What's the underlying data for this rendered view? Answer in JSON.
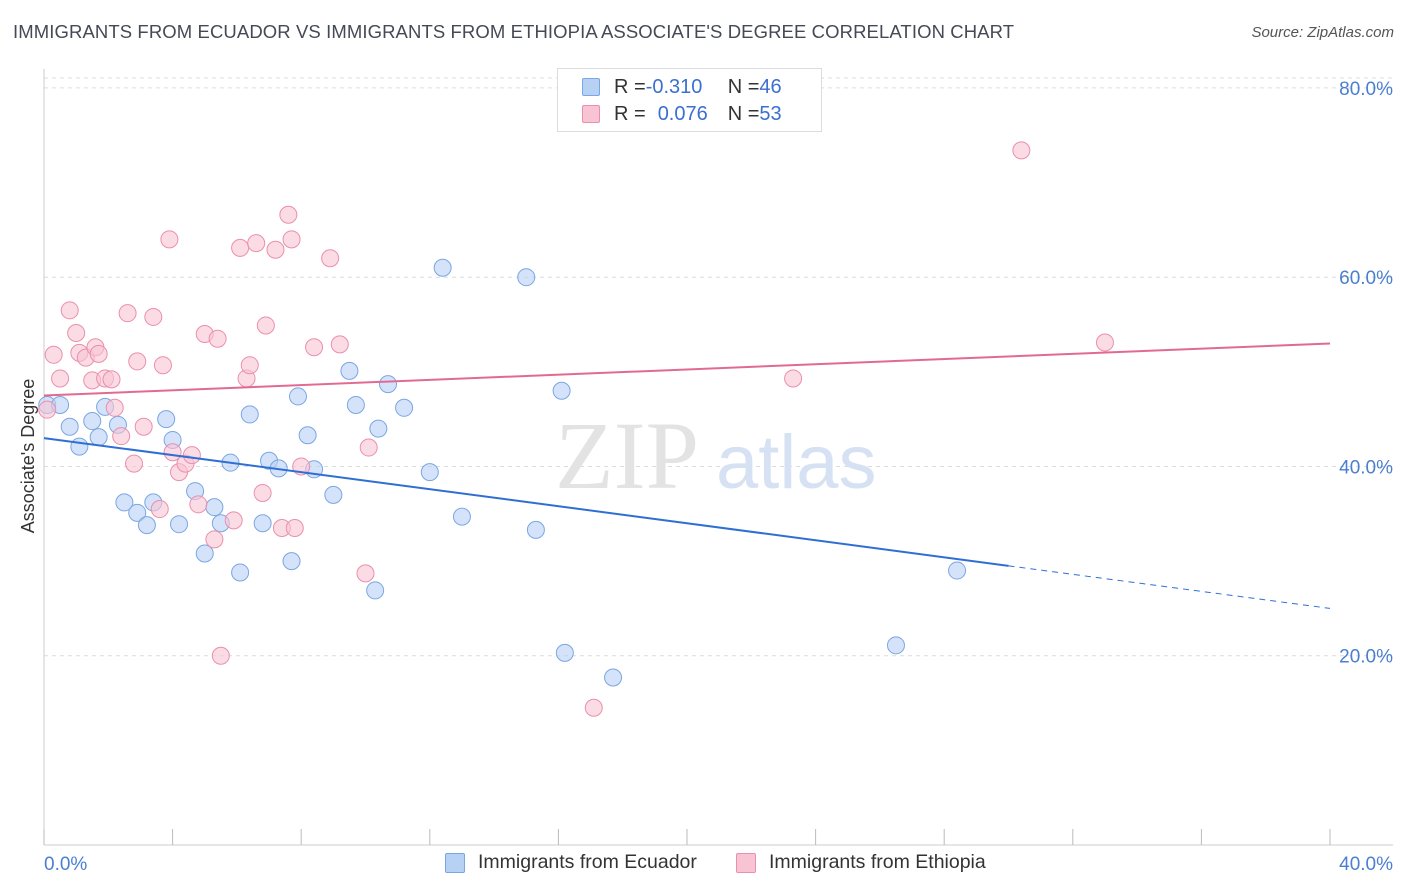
{
  "header": {
    "title": "IMMIGRANTS FROM ECUADOR VS IMMIGRANTS FROM ETHIOPIA ASSOCIATE'S DEGREE CORRELATION CHART",
    "source": "Source: ZipAtlas.com"
  },
  "watermark": {
    "zip": "ZIP",
    "atlas": "atlas"
  },
  "legend": {
    "series1": {
      "r_label": "R = ",
      "r_value": "-0.310",
      "n_label": "N = ",
      "n_value": "46"
    },
    "series2": {
      "r_label": "R = ",
      "r_value": "0.076",
      "n_label": "N = ",
      "n_value": "53"
    }
  },
  "chart_data": {
    "type": "scatter",
    "title": "IMMIGRANTS FROM ECUADOR VS IMMIGRANTS FROM ETHIOPIA ASSOCIATE'S DEGREE CORRELATION CHART",
    "xlabel": "",
    "ylabel": "Associate's Degree",
    "xlim": [
      0,
      40
    ],
    "ylim": [
      0,
      82
    ],
    "x_tick_labels": [
      "0.0%",
      "40.0%"
    ],
    "y_ticks": [
      20,
      40,
      60,
      80
    ],
    "y_tick_labels": [
      "20.0%",
      "40.0%",
      "60.0%",
      "80.0%"
    ],
    "grid": true,
    "colors": {
      "ecuador_fill": "#b7d1f5",
      "ecuador_stroke": "#7aa6e3",
      "ecuador_line": "#2f6fd3",
      "ethiopia_fill": "#f8c4d3",
      "ethiopia_stroke": "#ea8fad",
      "ethiopia_line": "#e26a92"
    },
    "series": [
      {
        "name": "Immigrants from Ecuador",
        "r": -0.31,
        "n": 46,
        "trend": {
          "x0": 0,
          "y0": 43.0,
          "x1": 30.0,
          "y1": 29.5,
          "dash_to_x": 40,
          "dash_to_y": 25.0
        },
        "points": [
          [
            0.1,
            46.5
          ],
          [
            0.5,
            46.5
          ],
          [
            0.8,
            44.2
          ],
          [
            1.1,
            42.1
          ],
          [
            1.5,
            44.8
          ],
          [
            1.7,
            43.1
          ],
          [
            1.9,
            46.3
          ],
          [
            2.3,
            44.4
          ],
          [
            2.5,
            36.2
          ],
          [
            2.9,
            35.1
          ],
          [
            3.2,
            33.8
          ],
          [
            3.4,
            36.2
          ],
          [
            3.8,
            45.0
          ],
          [
            4.0,
            42.8
          ],
          [
            4.2,
            33.9
          ],
          [
            4.7,
            37.4
          ],
          [
            5.0,
            30.8
          ],
          [
            5.3,
            35.7
          ],
          [
            5.5,
            34.0
          ],
          [
            5.8,
            40.4
          ],
          [
            6.1,
            28.8
          ],
          [
            6.4,
            45.5
          ],
          [
            6.8,
            34.0
          ],
          [
            7.0,
            40.6
          ],
          [
            7.3,
            39.8
          ],
          [
            7.7,
            30.0
          ],
          [
            7.9,
            47.4
          ],
          [
            8.2,
            43.3
          ],
          [
            8.4,
            39.7
          ],
          [
            9.0,
            37.0
          ],
          [
            9.5,
            50.1
          ],
          [
            9.7,
            46.5
          ],
          [
            10.3,
            26.9
          ],
          [
            10.4,
            44.0
          ],
          [
            10.7,
            48.7
          ],
          [
            11.2,
            46.2
          ],
          [
            12.0,
            39.4
          ],
          [
            12.4,
            61.0
          ],
          [
            13.0,
            34.7
          ],
          [
            15.0,
            60.0
          ],
          [
            15.3,
            33.3
          ],
          [
            16.1,
            48.0
          ],
          [
            16.2,
            20.3
          ],
          [
            17.7,
            17.7
          ],
          [
            26.5,
            21.1
          ],
          [
            28.4,
            29.0
          ]
        ]
      },
      {
        "name": "Immigrants from Ethiopia",
        "r": 0.076,
        "n": 53,
        "trend": {
          "x0": 0,
          "y0": 47.5,
          "x1": 40,
          "y1": 53.0
        },
        "points": [
          [
            0.1,
            46.0
          ],
          [
            0.3,
            51.8
          ],
          [
            0.5,
            49.3
          ],
          [
            0.8,
            56.5
          ],
          [
            1.0,
            54.1
          ],
          [
            1.1,
            52.0
          ],
          [
            1.3,
            51.5
          ],
          [
            1.5,
            49.1
          ],
          [
            1.6,
            52.6
          ],
          [
            1.7,
            51.9
          ],
          [
            1.9,
            49.3
          ],
          [
            2.1,
            49.2
          ],
          [
            2.2,
            46.2
          ],
          [
            2.4,
            43.2
          ],
          [
            2.6,
            56.2
          ],
          [
            2.8,
            40.3
          ],
          [
            2.9,
            51.1
          ],
          [
            3.1,
            44.2
          ],
          [
            3.4,
            55.8
          ],
          [
            3.6,
            35.5
          ],
          [
            3.7,
            50.7
          ],
          [
            3.9,
            64.0
          ],
          [
            4.0,
            41.5
          ],
          [
            4.2,
            39.4
          ],
          [
            4.4,
            40.3
          ],
          [
            4.6,
            41.2
          ],
          [
            4.8,
            36.0
          ],
          [
            5.0,
            54.0
          ],
          [
            5.3,
            32.3
          ],
          [
            5.4,
            53.5
          ],
          [
            5.5,
            20.0
          ],
          [
            5.9,
            34.3
          ],
          [
            6.1,
            63.1
          ],
          [
            6.3,
            49.3
          ],
          [
            6.4,
            50.7
          ],
          [
            6.6,
            63.6
          ],
          [
            6.8,
            37.2
          ],
          [
            6.9,
            54.9
          ],
          [
            7.2,
            62.9
          ],
          [
            7.4,
            33.5
          ],
          [
            7.6,
            66.6
          ],
          [
            7.7,
            64.0
          ],
          [
            7.8,
            33.5
          ],
          [
            8.0,
            40.0
          ],
          [
            8.4,
            52.6
          ],
          [
            8.9,
            62.0
          ],
          [
            9.2,
            52.9
          ],
          [
            10.0,
            28.7
          ],
          [
            10.1,
            42.0
          ],
          [
            17.1,
            14.5
          ],
          [
            23.3,
            49.3
          ],
          [
            30.4,
            73.4
          ],
          [
            33.0,
            53.1
          ]
        ]
      }
    ]
  },
  "bottom_legend": {
    "item1": "Immigrants from Ecuador",
    "item2": "Immigrants from Ethiopia"
  }
}
